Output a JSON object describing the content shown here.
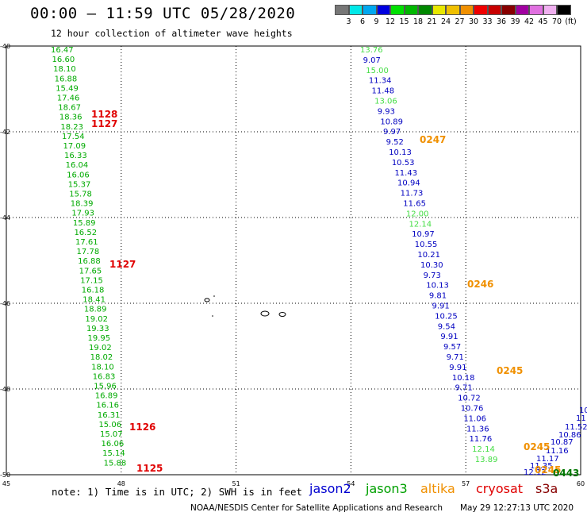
{
  "title": "00:00 — 11:59 UTC 05/28/2020",
  "subtitle": "12 hour collection of altimeter wave heights",
  "colorbar": {
    "colors": [
      "#777777",
      "#00e8e8",
      "#00a8f0",
      "#0000e0",
      "#00e000",
      "#00b800",
      "#008800",
      "#e8e800",
      "#f0c000",
      "#f09000",
      "#f00000",
      "#c80000",
      "#880000",
      "#a000a0",
      "#e070e0",
      "#f0b0f0",
      "#000000"
    ],
    "labels": [
      "3",
      "6",
      "9",
      "12",
      "15",
      "18",
      "21",
      "24",
      "27",
      "30",
      "33",
      "36",
      "39",
      "42",
      "45",
      "70",
      "(ft)"
    ]
  },
  "axes": {
    "lon_ticks": [
      "45",
      "48",
      "51",
      "54",
      "57",
      "60"
    ],
    "lat_ticks": [
      "-40",
      "-42",
      "-44",
      "-46",
      "-48",
      "-50"
    ]
  },
  "tracks": {
    "jason3_west": {
      "color": "#00aa00",
      "values": [
        "16.47",
        "16.60",
        "18.10",
        "16.88",
        "15.49",
        "17.46",
        "18.67",
        "18.36",
        "18.23",
        "17.54",
        "17.09",
        "16.33",
        "16.04",
        "16.06",
        "15.37",
        "15.78",
        "18.39",
        "17.93",
        "15.89",
        "16.52",
        "17.61",
        "17.78",
        "16.88",
        "17.65",
        "17.15",
        "16.18",
        "18.41",
        "18.89",
        "19.02",
        "19.33",
        "19.95",
        "19.02",
        "18.02",
        "18.10",
        "16.83",
        "15.96",
        "16.89",
        "16.16",
        "16.31",
        "15.06",
        "15.07",
        "16.06",
        "15.14",
        "15.88"
      ]
    },
    "cryosat_times": {
      "color": "#e00000",
      "values": [
        "1128",
        "1127",
        "1127",
        "1126",
        "1125"
      ]
    },
    "jason2_east": {
      "color": "#0000c0",
      "values": [
        "13.76",
        "9.07",
        "15.00",
        "11.34",
        "11.48",
        "13.06",
        "9.93",
        "10.89",
        "9.97",
        "9.52",
        "10.13",
        "10.53",
        "11.43",
        "10.94",
        "11.73",
        "11.65",
        "12.00",
        "12.14",
        "10.97",
        "10.55",
        "10.21",
        "10.30",
        "9.73",
        "10.13",
        "9.81",
        "9.91",
        "10.25",
        "9.54",
        "9.91",
        "9.57",
        "9.71",
        "9.91",
        "10.18",
        "9.71",
        "10.72",
        "10.76",
        "11.06",
        "11.36",
        "11.76",
        "12.14",
        "13.89"
      ],
      "light_color": "#44dd44"
    },
    "right_edge": {
      "color": "#0000c0",
      "values": [
        "10",
        "11",
        "11.52",
        "10.86",
        "10.87",
        "11.16",
        "11.17",
        "11.35",
        "12.12"
      ]
    },
    "altika_times": {
      "color": "#f09000",
      "values": [
        "0247",
        "0246",
        "0245",
        "0245",
        "0245"
      ]
    },
    "jason3_time": {
      "color": "#007700",
      "value": "0443"
    }
  },
  "note": "note: 1) Time is in UTC; 2) SWH is in feet",
  "legend": [
    {
      "label": "jason2",
      "color": "#0000d0"
    },
    {
      "label": "jason3",
      "color": "#00a000"
    },
    {
      "label": "altika",
      "color": "#f09000"
    },
    {
      "label": "cryosat",
      "color": "#e00000"
    },
    {
      "label": "s3a",
      "color": "#880000"
    }
  ],
  "footer_left": "NOAA/NESDIS Center for Satellite Applications and Research",
  "footer_right": "May 29 12:27:13 UTC 2020"
}
